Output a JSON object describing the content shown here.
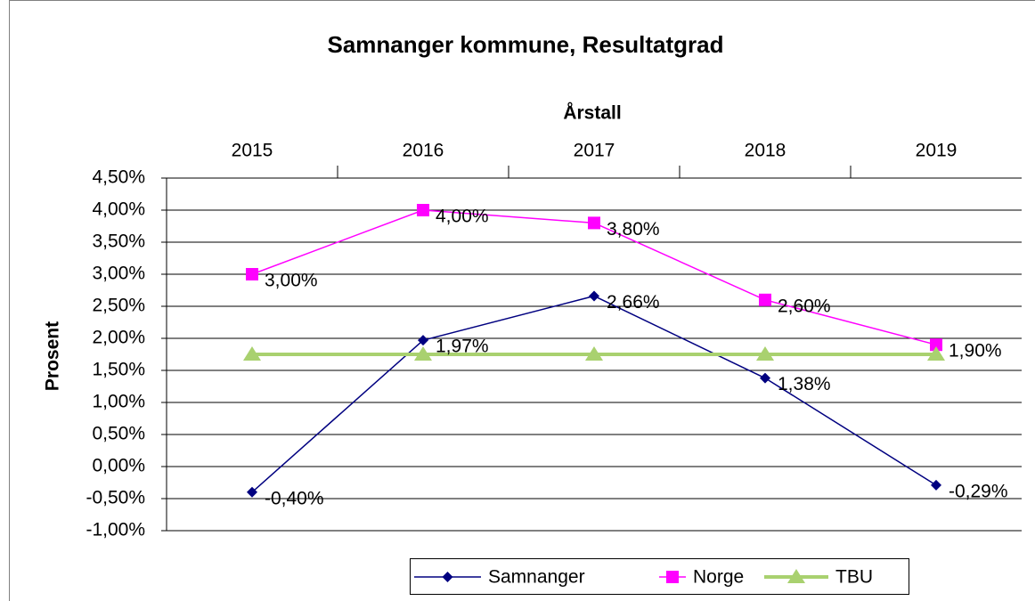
{
  "chart_data": {
    "type": "line",
    "title": "Samnanger kommune, Resultatgrad",
    "x_label": "Årstall",
    "y_label": "Prosent",
    "categories": [
      "2015",
      "2016",
      "2017",
      "2018",
      "2019"
    ],
    "series": [
      {
        "name": "Samnanger",
        "color": "#000080",
        "marker": "diamond",
        "line_width": 1.5,
        "values": [
          -0.4,
          1.97,
          2.66,
          1.38,
          -0.29
        ],
        "value_labels": [
          "-0,40%",
          "1,97%",
          "2,66%",
          "1,38%",
          "-0,29%"
        ]
      },
      {
        "name": "Norge",
        "color": "#ff00ff",
        "marker": "square",
        "line_width": 1.5,
        "values": [
          3.0,
          4.0,
          3.8,
          2.6,
          1.9
        ],
        "value_labels": [
          "3,00%",
          "4,00%",
          "3,80%",
          "2,60%",
          "1,90%"
        ]
      },
      {
        "name": "TBU",
        "color": "#a9d16f",
        "marker": "triangle",
        "line_width": 4,
        "values": [
          1.75,
          1.75,
          1.75,
          1.75,
          1.75
        ]
      }
    ],
    "ylim": [
      -1.0,
      4.5
    ],
    "yticks": [
      {
        "value": -1.0,
        "label": "-1,00%"
      },
      {
        "value": -0.5,
        "label": "-0,50%"
      },
      {
        "value": 0,
        "label": "0,00%"
      },
      {
        "value": 0.5,
        "label": "0,50%"
      },
      {
        "value": 1.0,
        "label": "1,00%"
      },
      {
        "value": 1.5,
        "label": "1,50%"
      },
      {
        "value": 2.0,
        "label": "2,00%"
      },
      {
        "value": 2.5,
        "label": "2,50%"
      },
      {
        "value": 3.0,
        "label": "3,00%"
      },
      {
        "value": 3.5,
        "label": "3,50%"
      },
      {
        "value": 4.0,
        "label": "4,00%"
      },
      {
        "value": 4.5,
        "label": "4,50%"
      }
    ],
    "grid": true,
    "legend": "bottom"
  }
}
